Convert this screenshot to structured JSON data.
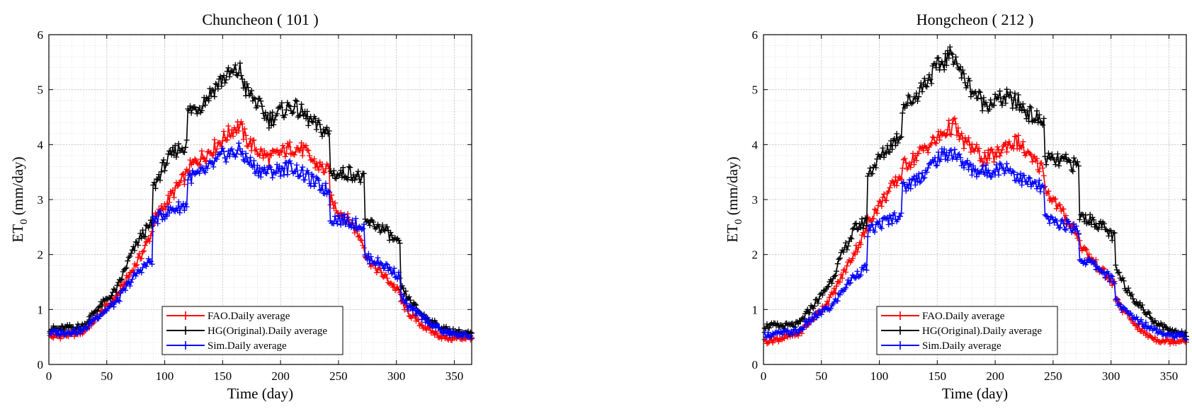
{
  "chart_data": [
    {
      "type": "line",
      "title": "Chuncheon ( 101 )",
      "xlabel": "Time (day)",
      "ylabel": "ET0 (mm/day)",
      "ylabel_main": "ET",
      "ylabel_sub": "0",
      "ylabel_unit": " (mm/day)",
      "xlim": [
        0,
        365
      ],
      "ylim": [
        0,
        6
      ],
      "xticks": [
        0,
        50,
        100,
        150,
        200,
        250,
        300,
        350
      ],
      "yticks": [
        0,
        1,
        2,
        3,
        4,
        5,
        6
      ],
      "grid": true,
      "legend_position": "bottom-center",
      "x": [
        0,
        10,
        20,
        30,
        40,
        50,
        59,
        70,
        80,
        89,
        90,
        100,
        110,
        119,
        120,
        130,
        140,
        150,
        160,
        165,
        170,
        180,
        190,
        200,
        210,
        220,
        230,
        242,
        243,
        250,
        260,
        272,
        273,
        280,
        290,
        303,
        304,
        310,
        320,
        330,
        340,
        350,
        365
      ],
      "series": [
        {
          "name": "FAO.Daily average",
          "color": "#ff0000",
          "values": [
            0.5,
            0.52,
            0.55,
            0.6,
            0.82,
            1.05,
            1.25,
            1.65,
            2.0,
            2.4,
            2.6,
            2.9,
            3.2,
            3.45,
            3.55,
            3.75,
            3.9,
            4.1,
            4.3,
            4.35,
            4.1,
            3.9,
            3.75,
            3.85,
            3.95,
            3.9,
            3.65,
            3.5,
            3.0,
            2.8,
            2.6,
            2.2,
            2.0,
            1.8,
            1.6,
            1.3,
            1.15,
            0.95,
            0.75,
            0.6,
            0.5,
            0.47,
            0.5
          ]
        },
        {
          "name": "HG(Original).Daily average",
          "color": "#000000",
          "values": [
            0.65,
            0.65,
            0.68,
            0.7,
            0.98,
            1.18,
            1.38,
            1.95,
            2.35,
            2.55,
            3.2,
            3.65,
            3.9,
            4.0,
            4.6,
            4.7,
            4.95,
            5.2,
            5.3,
            5.35,
            5.0,
            4.75,
            4.45,
            4.6,
            4.7,
            4.55,
            4.35,
            4.2,
            3.5,
            3.45,
            3.5,
            3.35,
            2.58,
            2.55,
            2.45,
            2.15,
            1.4,
            1.2,
            0.95,
            0.78,
            0.65,
            0.6,
            0.55
          ]
        },
        {
          "name": "Sim.Daily average",
          "color": "#0000ff",
          "values": [
            0.58,
            0.58,
            0.6,
            0.62,
            0.85,
            1.0,
            1.15,
            1.5,
            1.75,
            1.9,
            2.6,
            2.75,
            2.85,
            2.9,
            3.4,
            3.45,
            3.6,
            3.8,
            3.85,
            3.9,
            3.75,
            3.55,
            3.5,
            3.55,
            3.6,
            3.45,
            3.3,
            3.15,
            2.65,
            2.65,
            2.6,
            2.5,
            1.95,
            1.9,
            1.8,
            1.6,
            1.25,
            1.05,
            0.9,
            0.75,
            0.6,
            0.55,
            0.52
          ]
        }
      ]
    },
    {
      "type": "line",
      "title": "Hongcheon ( 212 )",
      "xlabel": "Time (day)",
      "ylabel": "ET0 (mm/day)",
      "ylabel_main": "ET",
      "ylabel_sub": "0",
      "ylabel_unit": " (mm/day)",
      "xlim": [
        0,
        365
      ],
      "ylim": [
        0,
        6
      ],
      "xticks": [
        0,
        50,
        100,
        150,
        200,
        250,
        300,
        350
      ],
      "yticks": [
        0,
        1,
        2,
        3,
        4,
        5,
        6
      ],
      "grid": true,
      "legend_position": "bottom-center",
      "x": [
        0,
        10,
        20,
        30,
        40,
        50,
        59,
        70,
        80,
        89,
        90,
        100,
        110,
        119,
        120,
        130,
        140,
        150,
        160,
        165,
        170,
        180,
        190,
        200,
        210,
        220,
        230,
        242,
        243,
        250,
        260,
        272,
        273,
        280,
        290,
        303,
        304,
        310,
        320,
        330,
        340,
        350,
        365
      ],
      "series": [
        {
          "name": "FAO.Daily average",
          "color": "#ff0000",
          "values": [
            0.42,
            0.45,
            0.5,
            0.55,
            0.78,
            1.0,
            1.25,
            1.7,
            2.1,
            2.45,
            2.6,
            2.9,
            3.2,
            3.45,
            3.6,
            3.75,
            3.95,
            4.1,
            4.3,
            4.35,
            4.1,
            3.95,
            3.75,
            3.8,
            4.0,
            4.05,
            3.75,
            3.55,
            3.2,
            3.0,
            2.7,
            2.35,
            2.2,
            2.0,
            1.75,
            1.45,
            1.2,
            1.0,
            0.75,
            0.55,
            0.45,
            0.42,
            0.45
          ]
        },
        {
          "name": "HG(Original).Daily average",
          "color": "#000000",
          "values": [
            0.7,
            0.7,
            0.7,
            0.72,
            1.0,
            1.25,
            1.55,
            2.1,
            2.5,
            2.6,
            3.45,
            3.75,
            4.0,
            4.2,
            4.7,
            4.85,
            5.15,
            5.4,
            5.6,
            5.65,
            5.3,
            5.0,
            4.75,
            4.8,
            4.85,
            4.75,
            4.55,
            4.4,
            3.75,
            3.7,
            3.7,
            3.6,
            2.7,
            2.65,
            2.55,
            2.3,
            1.75,
            1.5,
            1.2,
            0.95,
            0.75,
            0.62,
            0.55
          ]
        },
        {
          "name": "Sim.Daily average",
          "color": "#0000ff",
          "values": [
            0.55,
            0.55,
            0.58,
            0.6,
            0.8,
            0.95,
            1.05,
            1.4,
            1.65,
            1.75,
            2.4,
            2.55,
            2.65,
            2.75,
            3.2,
            3.35,
            3.5,
            3.75,
            3.85,
            3.85,
            3.7,
            3.55,
            3.5,
            3.55,
            3.6,
            3.4,
            3.3,
            3.2,
            2.65,
            2.6,
            2.55,
            2.45,
            1.9,
            1.88,
            1.75,
            1.5,
            1.2,
            1.0,
            0.85,
            0.72,
            0.62,
            0.55,
            0.5
          ]
        }
      ]
    }
  ]
}
